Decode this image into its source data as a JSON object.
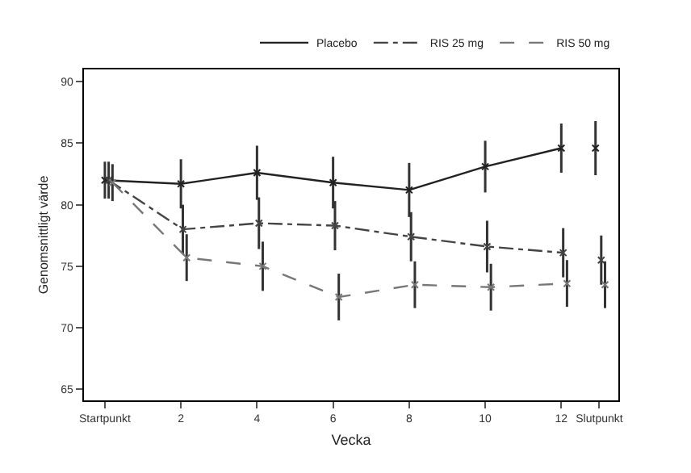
{
  "chart_data": {
    "type": "line",
    "xlabel": "Vecka",
    "ylabel": "Genomsnittligt värde",
    "xlim": [
      -0.55,
      13.5
    ],
    "ylim": [
      64.1,
      91
    ],
    "xticks": [
      {
        "value": 0,
        "label": "Startpunkt"
      },
      2,
      4,
      6,
      8,
      10,
      12,
      {
        "value": 13,
        "label": "Slutpunkt"
      }
    ],
    "yticks": [
      65,
      70,
      75,
      80,
      85,
      90
    ],
    "series": [
      {
        "name": "Placebo",
        "color": "#222222",
        "line_style": "solid",
        "x": [
          0,
          2,
          4,
          6,
          8,
          10,
          12,
          12.5,
          12.9
        ],
        "values": [
          82.0,
          81.7,
          82.6,
          81.8,
          81.2,
          83.1,
          84.6,
          null,
          84.6
        ],
        "errors": [
          1.5,
          2.0,
          2.2,
          2.1,
          2.2,
          2.1,
          2.0,
          null,
          2.2
        ]
      },
      {
        "name": "RIS 25 mg",
        "color": "#444444",
        "line_style": "dotted",
        "x": [
          0.1,
          2.05,
          4.05,
          6.05,
          8.05,
          10.05,
          12.05,
          12.6,
          13.05
        ],
        "values": [
          82.0,
          78.0,
          78.5,
          78.3,
          77.4,
          76.6,
          76.1,
          null,
          75.5
        ],
        "errors": [
          1.5,
          2.0,
          2.1,
          2.0,
          2.0,
          2.1,
          2.0,
          null,
          2.0
        ]
      },
      {
        "name": "RIS 50 mg",
        "color": "#777777",
        "line_style": "dashed",
        "x": [
          0.2,
          2.15,
          4.15,
          6.15,
          8.15,
          10.15,
          12.15,
          12.7,
          13.15
        ],
        "values": [
          81.8,
          75.7,
          75.0,
          72.5,
          73.5,
          73.3,
          73.6,
          null,
          73.5
        ],
        "errors": [
          1.5,
          1.9,
          2.0,
          1.9,
          1.9,
          1.9,
          1.9,
          null,
          1.9
        ]
      }
    ],
    "marker": "cross",
    "grid": false,
    "legend": "top right"
  }
}
